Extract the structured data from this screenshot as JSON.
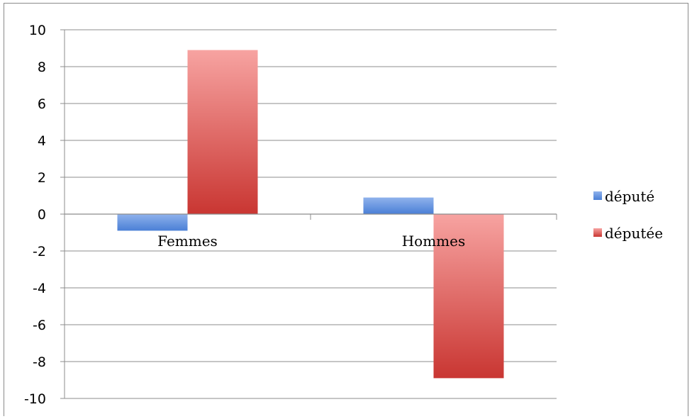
{
  "chart_data": {
    "type": "bar",
    "title": "",
    "xlabel": "",
    "ylabel": "",
    "categories": [
      "Femmes",
      "Hommes"
    ],
    "series": [
      {
        "name": "député",
        "values": [
          -0.9,
          0.9
        ],
        "color_top": "#8fb2ec",
        "color_bottom": "#4a7fd6"
      },
      {
        "name": "députée",
        "values": [
          8.9,
          -8.9
        ],
        "color_top": "#f7a3a1",
        "color_bottom": "#c93632"
      }
    ],
    "ylim": [
      -10,
      10
    ],
    "yticks": [
      "10",
      "8",
      "6",
      "4",
      "2",
      "0",
      "-2",
      "-4",
      "-6",
      "-8",
      "-10"
    ],
    "grid": true,
    "legend": "right"
  }
}
